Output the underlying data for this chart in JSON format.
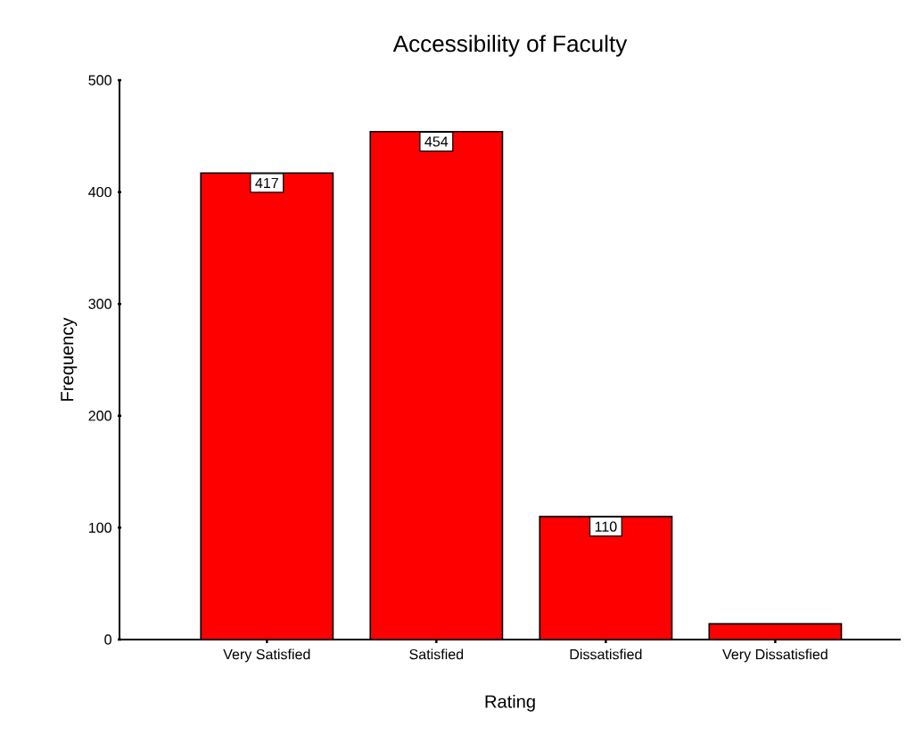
{
  "chart_data": {
    "type": "bar",
    "title": "Accessibility of Faculty",
    "xlabel": "Rating",
    "ylabel": "Frequency",
    "categories": [
      "Very Satisfied",
      "Satisfied",
      "Dissatisfied",
      "Very Dissatisfied"
    ],
    "values": [
      417,
      454,
      110,
      14
    ],
    "value_labels": [
      "417",
      "454",
      "110",
      null
    ],
    "color": "#ff0000",
    "ylim": [
      0,
      500
    ],
    "yticks": [
      0,
      100,
      200,
      300,
      400,
      500
    ]
  }
}
